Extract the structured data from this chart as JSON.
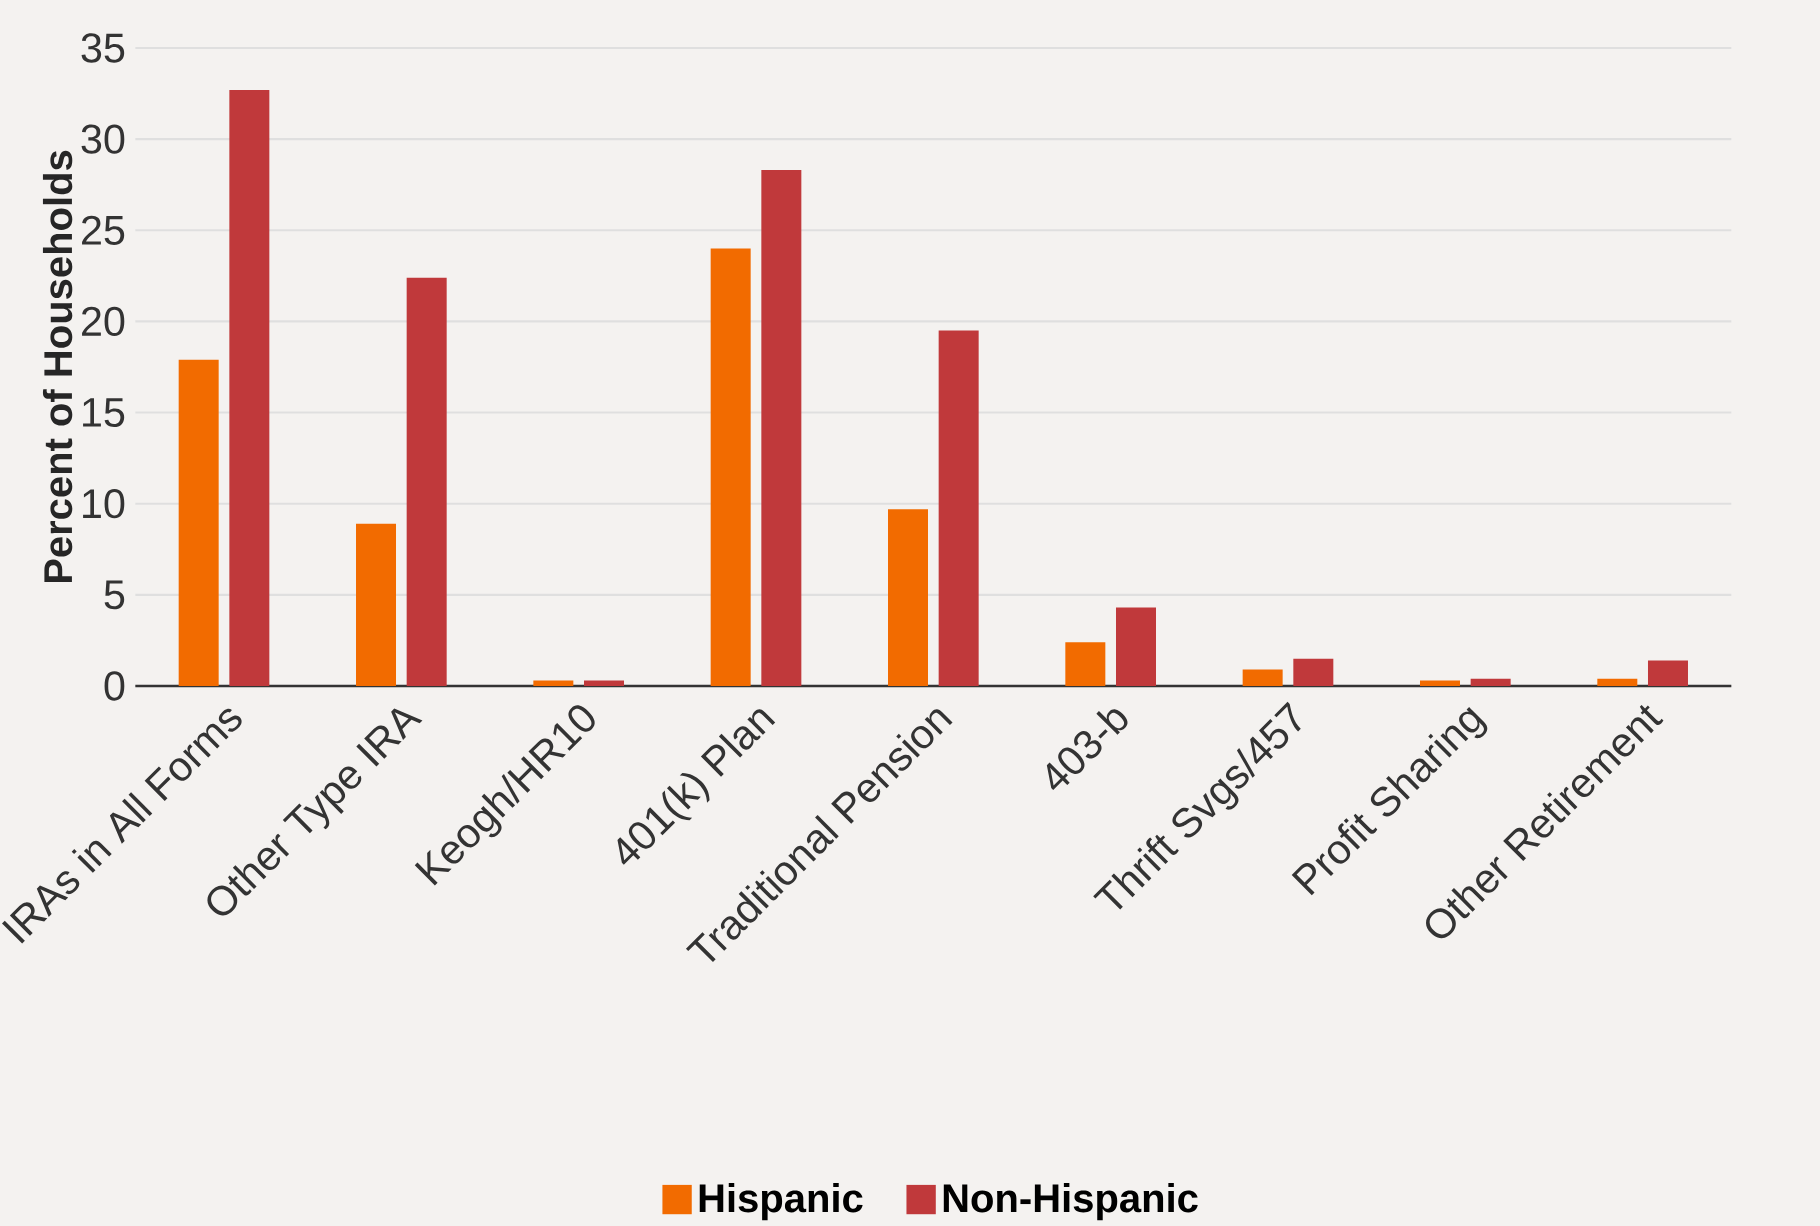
{
  "chart_data": {
    "type": "bar",
    "ylabel": "Percent of Households",
    "categories": [
      "IRAs in All Forms",
      "Other Type IRA",
      "Keogh/HR10",
      "401(k) Plan",
      "Traditional Pension",
      "403-b",
      "Thrift Svgs/457",
      "Profit Sharing",
      "Other Retirement"
    ],
    "series": [
      {
        "name": "Hispanic",
        "color": "#f26b00",
        "values": [
          17.9,
          8.9,
          0.3,
          24.0,
          9.7,
          2.4,
          0.9,
          0.3,
          0.4
        ]
      },
      {
        "name": "Non-Hispanic",
        "color": "#c0393b",
        "values": [
          32.7,
          22.4,
          0.3,
          28.3,
          19.5,
          4.3,
          1.5,
          0.4,
          1.4
        ]
      }
    ],
    "ylim": [
      0,
      35
    ],
    "yticks": [
      0,
      5,
      10,
      15,
      20,
      25,
      30,
      35
    ],
    "grid": "y",
    "legend": "bottom"
  }
}
